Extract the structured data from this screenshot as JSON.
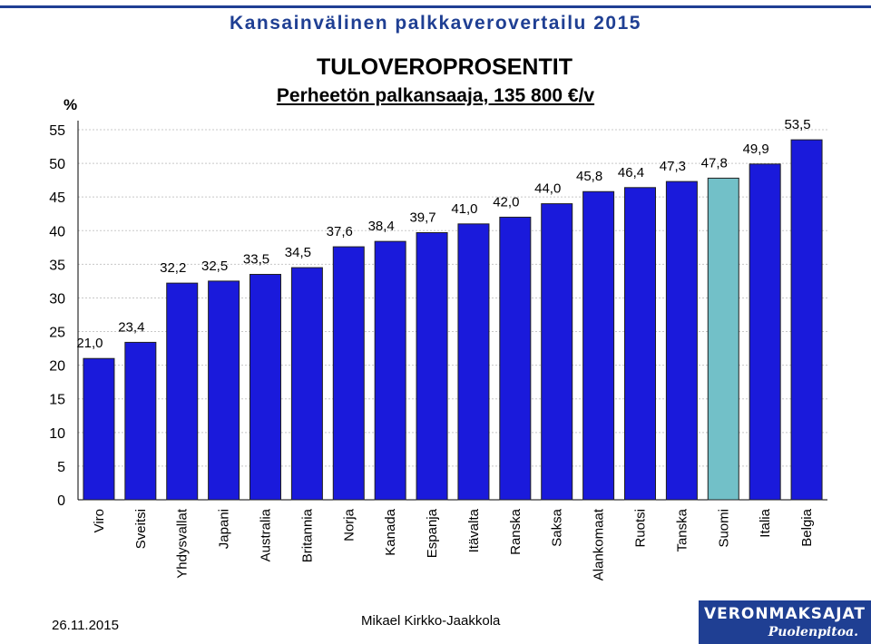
{
  "header": {
    "title": "Kansainvälinen palkkaverovertailu 2015"
  },
  "footer": {
    "date": "26.11.2015",
    "author": "Mikael Kirkko-Jaakkola",
    "logo_main": "VERONMAKSAJAT",
    "logo_sub": "Puolenpitoa."
  },
  "colors": {
    "bar": "#1a1adb",
    "highlight_bar": "#72c0c8",
    "header": "#1f3f93"
  },
  "chart_data": {
    "type": "bar",
    "title": "TULOVEROPROSENTIT",
    "subtitle": "Perheetön palkansaaja, 135 800 €/v",
    "ylabel": "%",
    "xlabel": "",
    "ylim": [
      0,
      55
    ],
    "yticks": [
      0,
      5,
      10,
      15,
      20,
      25,
      30,
      35,
      40,
      45,
      50,
      55
    ],
    "grid": true,
    "categories": [
      "Viro",
      "Sveitsi",
      "Yhdysvallat",
      "Japani",
      "Australia",
      "Britannia",
      "Norja",
      "Kanada",
      "Espanja",
      "Itävalta",
      "Ranska",
      "Saksa",
      "Alankomaat",
      "Ruotsi",
      "Tanska",
      "Suomi",
      "Italia",
      "Belgia"
    ],
    "values": [
      21.0,
      23.4,
      32.2,
      32.5,
      33.5,
      34.5,
      37.6,
      38.4,
      39.7,
      41.0,
      42.0,
      44.0,
      45.8,
      46.4,
      47.3,
      47.8,
      49.9,
      53.5
    ],
    "value_labels": [
      "21,0",
      "23,4",
      "32,2",
      "32,5",
      "33,5",
      "34,5",
      "37,6",
      "38,4",
      "39,7",
      "41,0",
      "42,0",
      "44,0",
      "45,8",
      "46,4",
      "47,3",
      "47,8",
      "49,9",
      "53,5"
    ],
    "highlight": "Suomi"
  }
}
